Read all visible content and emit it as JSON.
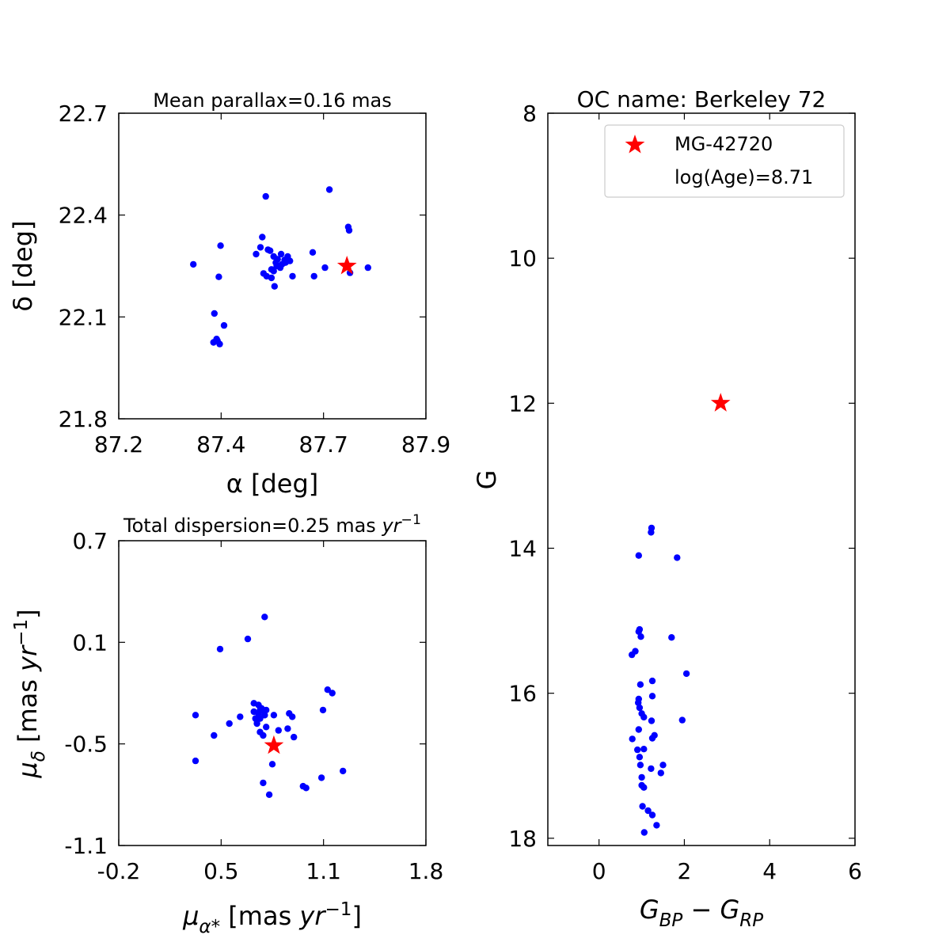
{
  "colors": {
    "points": "#0000ff",
    "highlight": "#ff0000",
    "axes": "#000000"
  },
  "chart_data": [
    {
      "type": "scatter",
      "title": "Mean parallax=0.16 mas",
      "xlabel": "α [deg]",
      "ylabel": "δ [deg]",
      "xlim": [
        87.2,
        87.9
      ],
      "ylim": [
        21.8,
        22.7
      ],
      "xticks": [
        "87.2",
        "87.4",
        "87.7",
        "87.9"
      ],
      "yticks": [
        "21.8",
        "22.1",
        "22.4",
        "22.7"
      ],
      "series": [
        {
          "x": [
            87.37,
            87.432,
            87.428,
            87.43,
            87.535,
            87.527,
            87.523,
            87.53,
            87.513,
            87.537,
            87.548,
            87.555,
            87.558,
            87.562,
            87.57,
            87.553,
            87.56,
            87.548,
            87.568,
            87.578,
            87.572,
            87.585,
            87.58,
            87.59,
            87.545,
            87.54,
            87.553,
            87.596,
            87.642,
            87.645,
            87.67,
            87.68,
            87.723,
            87.727,
            87.725,
            87.768,
            87.416,
            87.418,
            87.423,
            87.44,
            87.425
          ],
          "y": [
            22.255,
            22.31,
            22.218,
            22.02,
            22.455,
            22.335,
            22.305,
            22.228,
            22.285,
            22.22,
            22.215,
            22.19,
            22.26,
            22.27,
            22.285,
            22.278,
            22.25,
            22.24,
            22.245,
            22.268,
            22.255,
            22.278,
            22.26,
            22.265,
            22.295,
            22.298,
            22.235,
            22.22,
            22.29,
            22.22,
            22.245,
            22.475,
            22.365,
            22.23,
            22.355,
            22.245,
            22.025,
            22.11,
            22.035,
            22.075,
            22.03
          ]
        }
      ],
      "highlight": {
        "x": 87.72,
        "y": 22.25
      }
    },
    {
      "type": "scatter",
      "title": "Total dispersion=0.25 mas yr⁻¹",
      "xlabel": "μα* [mas yr⁻¹]",
      "ylabel": "μδ [mas yr⁻¹]",
      "xlim": [
        -0.2,
        1.8
      ],
      "ylim": [
        -1.1,
        0.7
      ],
      "xticks": [
        "-0.2",
        "0.5",
        "1.1",
        "1.8"
      ],
      "yticks": [
        "-1.1",
        "-0.5",
        "0.1",
        "0.7"
      ],
      "series": [
        {
          "x": [
            0.3,
            0.3,
            0.42,
            0.46,
            0.52,
            0.59,
            0.84,
            0.8,
            0.74,
            0.78,
            0.68,
            0.73,
            0.71,
            0.68,
            0.7,
            0.72,
            0.75,
            0.7,
            0.72,
            0.74,
            0.76,
            0.69,
            0.71,
            0.73,
            0.7,
            0.72,
            0.75,
            0.76,
            0.81,
            0.9,
            0.93,
            0.94,
            0.91,
            1.0,
            1.02,
            1.13,
            1.16,
            1.19,
            1.26,
            1.12,
            0.75,
            0.64
          ],
          "y": [
            -0.33,
            -0.6,
            -0.45,
            0.06,
            -0.38,
            -0.34,
            -0.42,
            -0.62,
            -0.73,
            -0.8,
            -0.26,
            -0.3,
            -0.27,
            -0.31,
            -0.36,
            -0.35,
            -0.33,
            -0.38,
            -0.43,
            -0.45,
            -0.4,
            -0.35,
            -0.32,
            -0.29,
            -0.36,
            -0.3,
            -0.33,
            -0.3,
            -0.33,
            -0.41,
            -0.34,
            -0.46,
            -0.32,
            -0.75,
            -0.76,
            -0.3,
            -0.18,
            -0.2,
            -0.66,
            -0.7,
            0.25,
            0.12
          ]
        }
      ],
      "highlight": {
        "x": 0.81,
        "y": -0.51
      }
    },
    {
      "type": "scatter",
      "title": "OC name: Berkeley 72",
      "xlabel": "GBP − GRP",
      "ylabel": "G",
      "xlim": [
        -1.2,
        6.0
      ],
      "ylim": [
        18.1,
        8.0
      ],
      "xticks": [
        "0",
        "2",
        "4",
        "6"
      ],
      "yticks": [
        "8",
        "10",
        "12",
        "14",
        "16",
        "18"
      ],
      "legend": {
        "position": "top-right",
        "entries": [
          "MG-42720",
          "log(Age)=8.71"
        ]
      },
      "series": [
        {
          "x": [
            1.23,
            1.22,
            0.93,
            1.83,
            0.95,
            0.93,
            0.98,
            0.77,
            1.7,
            0.85,
            2.05,
            0.97,
            1.25,
            0.93,
            1.25,
            0.92,
            0.95,
            1.0,
            1.23,
            0.93,
            1.05,
            1.95,
            1.3,
            0.78,
            1.25,
            0.9,
            1.05,
            0.95,
            0.97,
            1.0,
            1.5,
            1.22,
            1.45,
            1.0,
            1.05,
            1.02,
            1.15,
            1.25,
            1.35,
            1.06
          ],
          "y": [
            13.72,
            13.78,
            14.1,
            14.13,
            15.12,
            15.15,
            15.22,
            15.47,
            15.23,
            15.42,
            15.73,
            15.88,
            15.83,
            16.08,
            16.04,
            16.13,
            16.2,
            16.28,
            16.38,
            16.5,
            16.33,
            16.37,
            16.58,
            16.63,
            16.62,
            16.78,
            16.77,
            16.88,
            16.99,
            17.16,
            16.99,
            17.04,
            17.1,
            17.27,
            17.3,
            17.56,
            17.62,
            17.68,
            17.82,
            17.92
          ]
        }
      ],
      "highlight": {
        "x": 2.85,
        "y": 12.0
      }
    }
  ]
}
